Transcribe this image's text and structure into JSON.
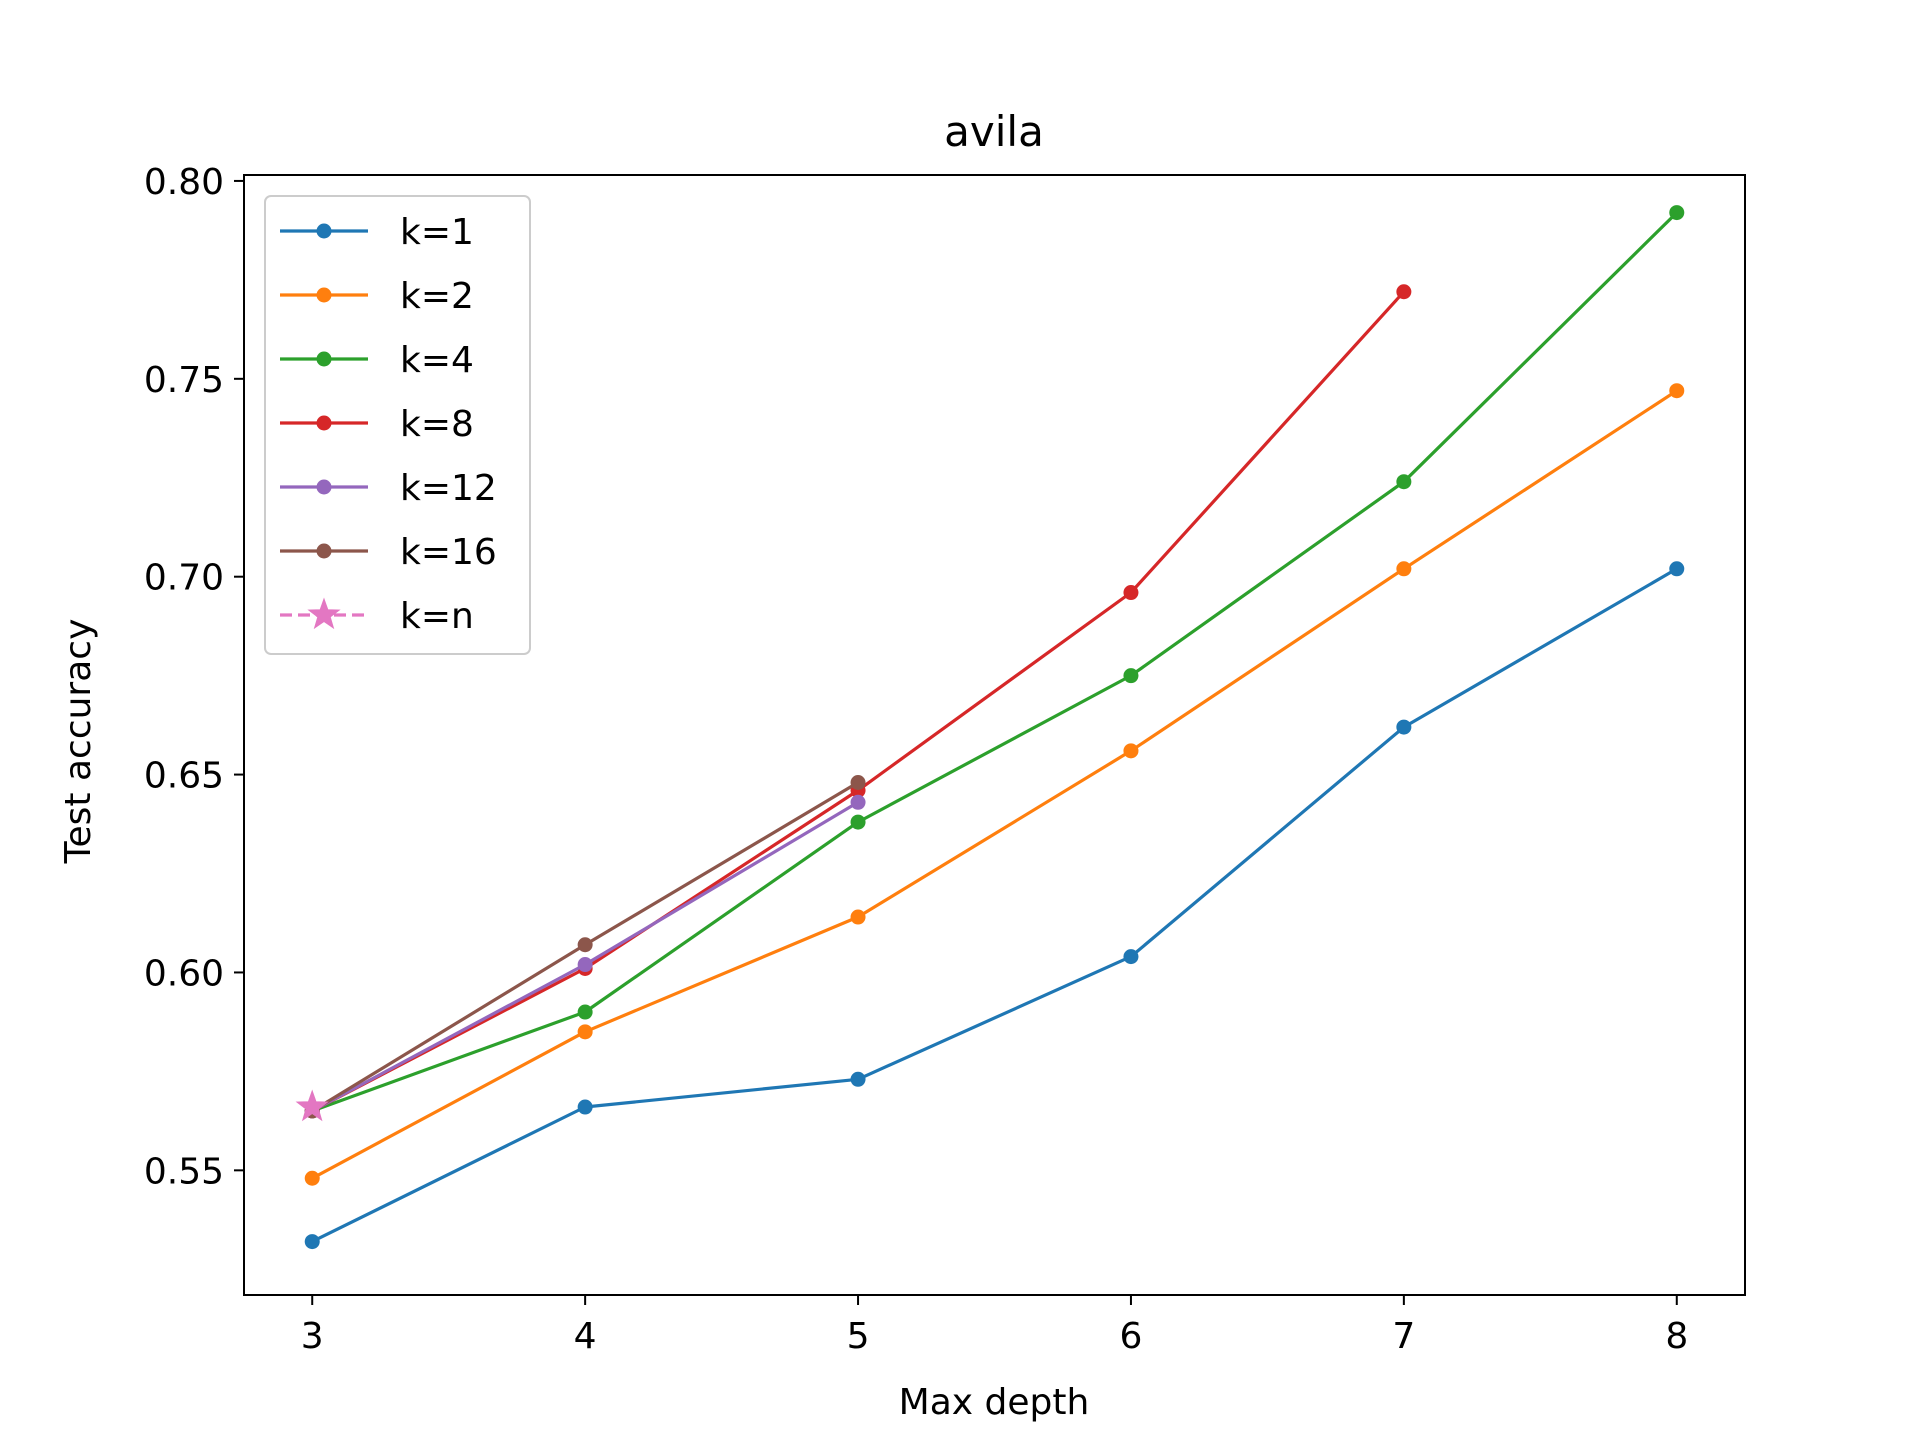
{
  "chart_data": {
    "type": "line",
    "title": "avila",
    "xlabel": "Max depth",
    "ylabel": "Test accuracy",
    "xlim": [
      2.75,
      8.25
    ],
    "ylim": [
      0.5185,
      0.8015
    ],
    "xticks": [
      3,
      4,
      5,
      6,
      7,
      8
    ],
    "yticks": [
      0.55,
      0.6,
      0.65,
      0.7,
      0.75,
      0.8
    ],
    "xtick_labels": [
      "3",
      "4",
      "5",
      "6",
      "7",
      "8"
    ],
    "ytick_labels": [
      "0.55",
      "0.60",
      "0.65",
      "0.70",
      "0.75",
      "0.80"
    ],
    "grid": false,
    "legend_position": "top-left",
    "series": [
      {
        "name": "k=1",
        "color": "#1f77b4",
        "marker": "circle",
        "dash": "solid",
        "x": [
          3,
          4,
          5,
          6,
          7,
          8
        ],
        "values": [
          0.532,
          0.566,
          0.573,
          0.604,
          0.662,
          0.702
        ]
      },
      {
        "name": "k=2",
        "color": "#ff7f0e",
        "marker": "circle",
        "dash": "solid",
        "x": [
          3,
          4,
          5,
          6,
          7,
          8
        ],
        "values": [
          0.548,
          0.585,
          0.614,
          0.656,
          0.702,
          0.747
        ]
      },
      {
        "name": "k=4",
        "color": "#2ca02c",
        "marker": "circle",
        "dash": "solid",
        "x": [
          3,
          4,
          5,
          6,
          7,
          8
        ],
        "values": [
          0.565,
          0.59,
          0.638,
          0.675,
          0.724,
          0.792
        ]
      },
      {
        "name": "k=8",
        "color": "#d62728",
        "marker": "circle",
        "dash": "solid",
        "x": [
          3,
          4,
          5,
          6,
          7
        ],
        "values": [
          0.565,
          0.601,
          0.646,
          0.696,
          0.772
        ]
      },
      {
        "name": "k=12",
        "color": "#9467bd",
        "marker": "circle",
        "dash": "solid",
        "x": [
          3,
          4,
          5
        ],
        "values": [
          0.565,
          0.602,
          0.643
        ]
      },
      {
        "name": "k=16",
        "color": "#8c564b",
        "marker": "circle",
        "dash": "solid",
        "x": [
          3,
          4,
          5
        ],
        "values": [
          0.565,
          0.607,
          0.648
        ]
      },
      {
        "name": "k=n",
        "color": "#e377c2",
        "marker": "star",
        "dash": "dashed",
        "x": [
          3
        ],
        "values": [
          0.566
        ]
      }
    ]
  }
}
